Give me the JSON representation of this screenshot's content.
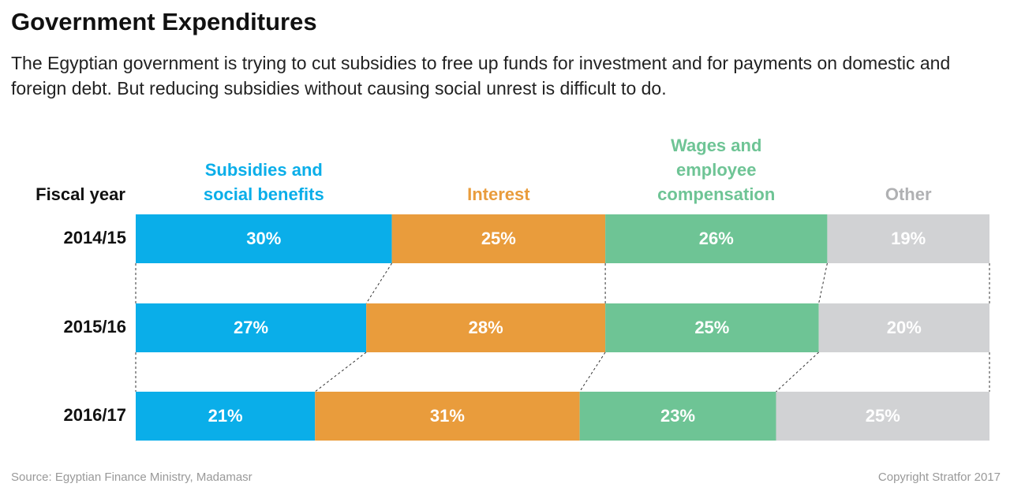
{
  "chart_data": {
    "type": "stacked_bar_horizontal",
    "title": "Government Expenditures",
    "subtitle": "The Egyptian government is trying to cut subsidies to free up  funds for investment and for payments on domestic and foreign debt. But reducing subsidies without causing social unrest is difficult to do.",
    "ylabel": "Fiscal year",
    "categories": [
      "2014/15",
      "2015/16",
      "2016/17"
    ],
    "xlim": [
      0,
      100
    ],
    "series": [
      {
        "name": "Subsidies and social benefits",
        "color": "#0aaee9",
        "values": [
          30,
          27,
          21
        ],
        "value_labels": [
          "30%",
          "27%",
          "21%"
        ]
      },
      {
        "name": "Interest",
        "color": "#e99c3c",
        "values": [
          25,
          28,
          31
        ],
        "value_labels": [
          "25%",
          "28%",
          "31%"
        ]
      },
      {
        "name": "Wages and employee compensation",
        "color": "#6ec495",
        "values": [
          26,
          25,
          23
        ],
        "value_labels": [
          "26%",
          "25%",
          "23%"
        ]
      },
      {
        "name": "Other",
        "color": "#d1d2d4",
        "values": [
          19,
          20,
          25
        ],
        "value_labels": [
          "19%",
          "20%",
          "25%"
        ]
      }
    ],
    "source": "Source: Egyptian Finance Ministry, Madamasr",
    "copyright": "Copyright Stratfor 2017"
  }
}
